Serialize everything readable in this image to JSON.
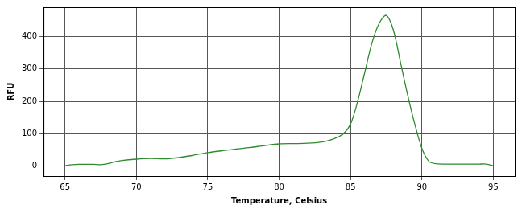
{
  "chart_data": {
    "type": "line",
    "x_label": "Temperature, Celsius",
    "y_label": "RFU",
    "x": [
      65,
      65.5,
      66,
      67,
      67.5,
      68,
      68.5,
      69,
      70,
      71,
      72,
      73,
      74,
      75,
      76,
      77,
      78,
      79,
      80,
      81,
      82,
      83,
      83.5,
      84,
      84.5,
      85,
      85.5,
      86,
      86.5,
      87,
      87.5,
      88,
      88.5,
      89,
      89.5,
      90,
      90.5,
      91,
      92,
      93,
      94,
      94.5,
      95
    ],
    "values": [
      2,
      5,
      6,
      6,
      5,
      8,
      14,
      18,
      22,
      24,
      23,
      27,
      34,
      42,
      48,
      53,
      58,
      64,
      69,
      70,
      71,
      75,
      80,
      88,
      100,
      130,
      200,
      290,
      380,
      440,
      465,
      420,
      320,
      220,
      130,
      55,
      15,
      8,
      7,
      7,
      7,
      7,
      2
    ],
    "color": "#2e8b2e",
    "xlim": [
      63.5,
      96.5
    ],
    "xticks": [
      65,
      70,
      75,
      80,
      85,
      90,
      95
    ],
    "ylim": [
      -30,
      490
    ],
    "yticks": [
      0,
      100,
      200,
      300,
      400
    ],
    "grid": true
  }
}
